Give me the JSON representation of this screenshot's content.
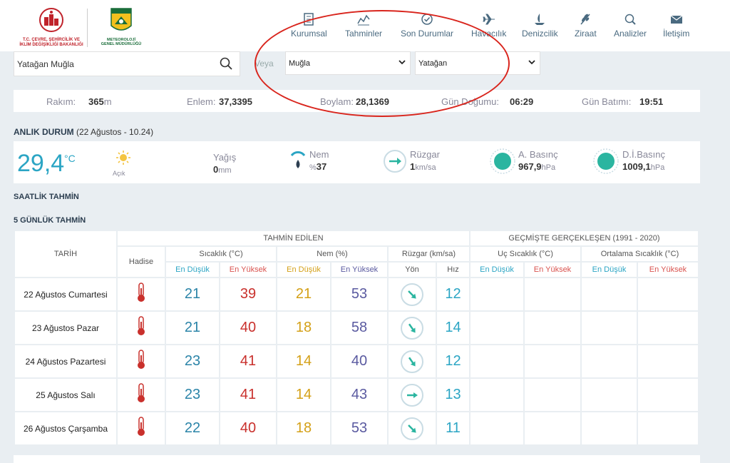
{
  "header": {
    "logo1_lines": [
      "T.C. ÇEVRE, ŞEHİRCİLİK VE",
      "İKLİM DEĞİŞİKLİĞİ BAKANLIĞI"
    ],
    "logo2_lines": [
      "METEOROLOJİ",
      "GENEL MÜDÜRLÜĞÜ"
    ],
    "logo2_badge": "METEOROLOJİ",
    "nav": [
      {
        "label": "Kurumsal",
        "icon": "building-icon"
      },
      {
        "label": "Tahminler",
        "icon": "chart-icon"
      },
      {
        "label": "Son Durumlar",
        "icon": "check-circle-icon"
      },
      {
        "label": "Havacılık",
        "icon": "plane-icon"
      },
      {
        "label": "Denizcilik",
        "icon": "sailboat-icon"
      },
      {
        "label": "Ziraat",
        "icon": "wheat-icon"
      },
      {
        "label": "Analizler",
        "icon": "magnifier-icon"
      },
      {
        "label": "İletişim",
        "icon": "envelope-icon"
      }
    ]
  },
  "search": {
    "value": "Yatağan Muğla",
    "or_label": "Veya",
    "province": "Muğla",
    "district": "Yatağan"
  },
  "info": {
    "altitude_label": "Rakım:",
    "altitude_value": "365",
    "altitude_unit": "m",
    "lat_label": "Enlem:",
    "lat_value": "37,3395",
    "lon_label": "Boylam:",
    "lon_value": "28,1369",
    "sunrise_label": "Gün Doğumu:",
    "sunrise_value": "06:29",
    "sunset_label": "Gün Batımı:",
    "sunset_value": "19:51"
  },
  "current": {
    "title": "ANLIK DURUM",
    "subtitle": "(22 Ağustos - 10.24)",
    "temp": "29,4",
    "temp_unit": "°C",
    "condition": "Açık",
    "rain_label": "Yağış",
    "rain_value": "0",
    "rain_unit": "mm",
    "humidity_label": "Nem",
    "humidity_prefix": "%",
    "humidity_value": "37",
    "wind_label": "Rüzgar",
    "wind_value": "1",
    "wind_unit": "km/sa",
    "pressure_label": "A. Basınç",
    "pressure_value": "967,9",
    "pressure_unit": "hPa",
    "sea_pressure_label": "D.İ.Basınç",
    "sea_pressure_value": "1009,1",
    "sea_pressure_unit": "hPa"
  },
  "hourly_title": "SAATLİK TAHMİN",
  "daily_title": "5 GÜNLÜK TAHMİN",
  "table": {
    "forecast_header": "TAHMİN EDİLEN",
    "past_header": "GEÇMİŞTE GERÇEKLEŞEN (1991 - 2020)",
    "date_header": "TARİH",
    "event_header": "Hadise",
    "temp_header": "Sıcaklık (°C)",
    "hum_header": "Nem (%)",
    "wind_header": "Rüzgar (km/sa)",
    "extreme_header": "Uç Sıcaklık (°C)",
    "avg_header": "Ortalama Sıcaklık (°C)",
    "min_label": "En Düşük",
    "max_label": "En Yüksek",
    "dir_label": "Yön",
    "speed_label": "Hız",
    "rows": [
      {
        "date": "22 Ağustos Cumartesi",
        "tmin": "21",
        "tmax": "39",
        "hmin": "21",
        "hmax": "53",
        "wdir": 45,
        "wspd": "12"
      },
      {
        "date": "23 Ağustos Pazar",
        "tmin": "21",
        "tmax": "40",
        "hmin": "18",
        "hmax": "58",
        "wdir": 55,
        "wspd": "14"
      },
      {
        "date": "24 Ağustos Pazartesi",
        "tmin": "23",
        "tmax": "41",
        "hmin": "14",
        "hmax": "40",
        "wdir": 55,
        "wspd": "12"
      },
      {
        "date": "25 Ağustos Salı",
        "tmin": "23",
        "tmax": "41",
        "hmin": "14",
        "hmax": "43",
        "wdir": 0,
        "wspd": "13"
      },
      {
        "date": "26 Ağustos Çarşamba",
        "tmin": "22",
        "tmax": "40",
        "hmin": "18",
        "hmax": "53",
        "wdir": 45,
        "wspd": "11"
      }
    ]
  },
  "colors": {
    "accent": "#2ba5c4",
    "annotation": "#d9251d",
    "pressure": "#2bb5a0"
  }
}
